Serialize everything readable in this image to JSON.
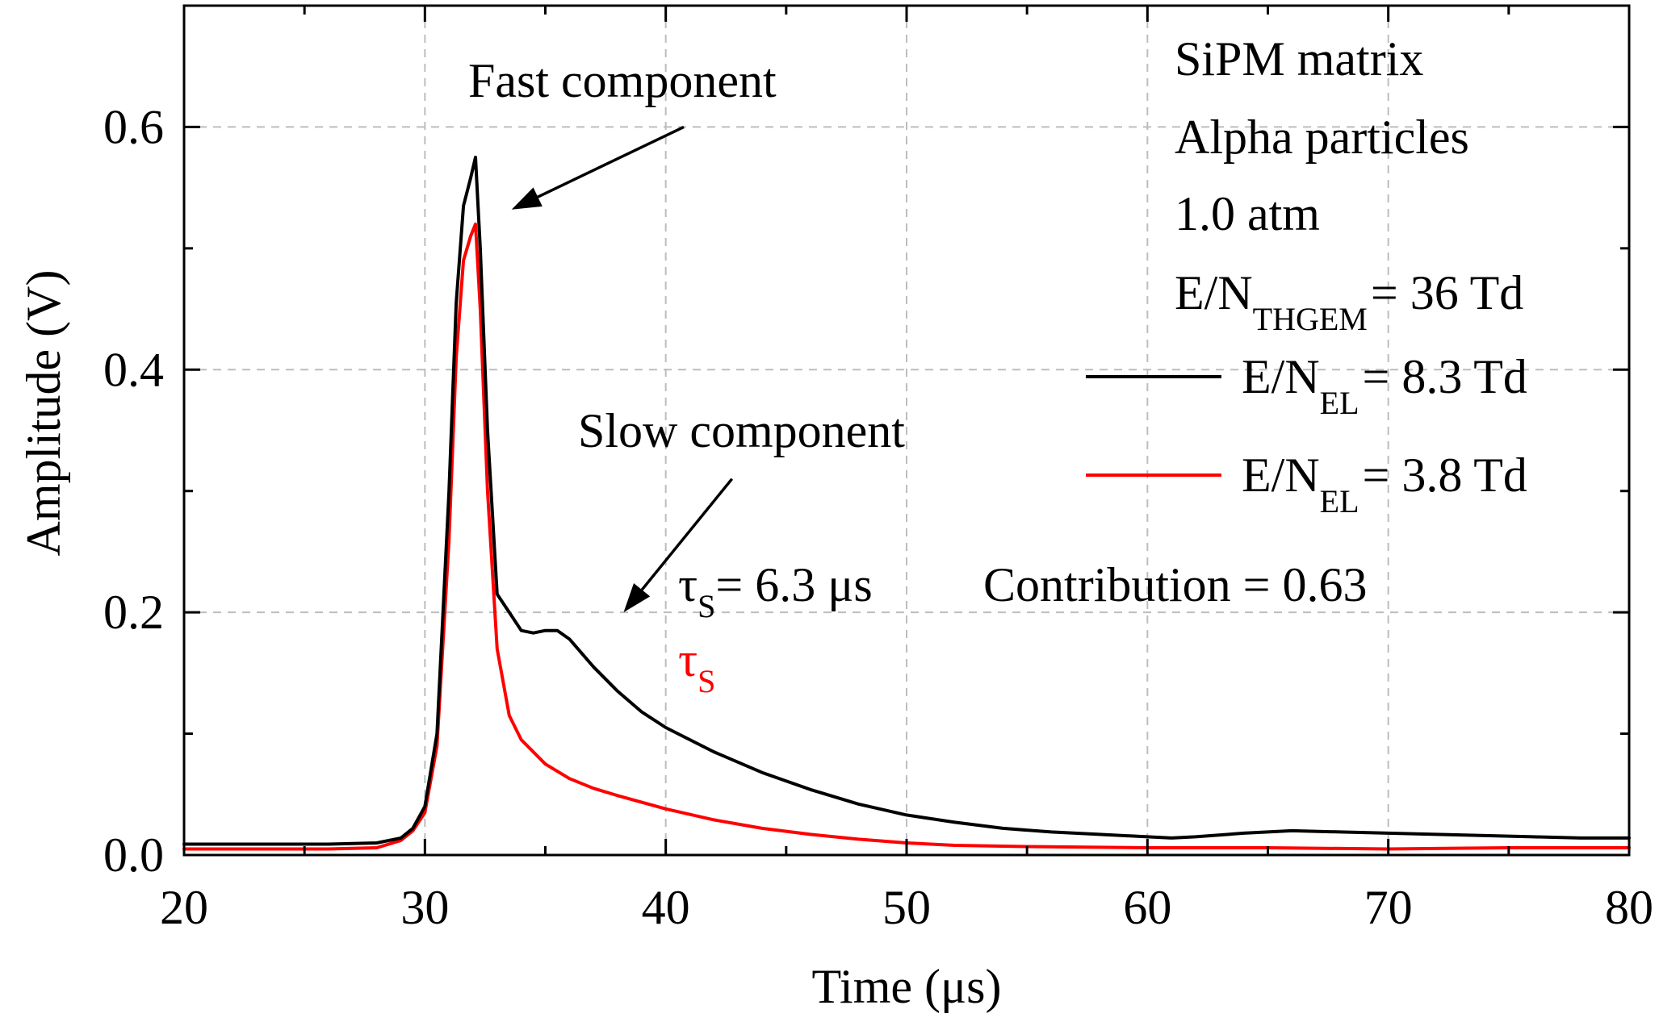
{
  "chart_data": {
    "type": "line",
    "title": "",
    "xlabel": "Time (μs)",
    "ylabel": "Amplitude (V)",
    "xlim": [
      20,
      80
    ],
    "ylim": [
      0,
      0.7
    ],
    "x_ticks": [
      20,
      30,
      40,
      50,
      60,
      70,
      80
    ],
    "x_tick_labels": [
      "20",
      "30",
      "40",
      "50",
      "60",
      "70",
      "80"
    ],
    "y_ticks": [
      0,
      0.2,
      0.4,
      0.6
    ],
    "y_tick_labels": [
      "0.0",
      "0.2",
      "0.4",
      "0.6"
    ],
    "y_minor_ticks": [
      0.1,
      0.3,
      0.5
    ],
    "x_minor_ticks": [
      25,
      35,
      45,
      55,
      65,
      75
    ],
    "grid": true,
    "legend_position": "right",
    "info_lines": [
      "SiPM matrix",
      "Alpha particles",
      "1.0 atm"
    ],
    "info_field": {
      "prefix": "E/N",
      "subscript": "THGEM",
      "suffix": "= 36 Td"
    },
    "series": [
      {
        "name": "E/N_EL = 8.3 Td",
        "legend_prefix": "E/N",
        "legend_subscript": "EL",
        "legend_suffix": "= 8.3 Td",
        "color": "#000000",
        "x": [
          20,
          22,
          24,
          26,
          28,
          29,
          29.5,
          30,
          30.5,
          31,
          31.3,
          31.6,
          31.9,
          32.1,
          32.3,
          32.6,
          33,
          33.5,
          34,
          34.5,
          35,
          35.5,
          36,
          37,
          38,
          39,
          40,
          42,
          44,
          46,
          48,
          50,
          52,
          54,
          56,
          58,
          60,
          61,
          62,
          64,
          66,
          68,
          70,
          72,
          74,
          76,
          78,
          80
        ],
        "y": [
          0.009,
          0.009,
          0.009,
          0.009,
          0.01,
          0.014,
          0.022,
          0.04,
          0.1,
          0.3,
          0.455,
          0.535,
          0.558,
          0.575,
          0.5,
          0.35,
          0.215,
          0.2,
          0.185,
          0.183,
          0.185,
          0.185,
          0.178,
          0.155,
          0.135,
          0.118,
          0.105,
          0.085,
          0.068,
          0.054,
          0.042,
          0.033,
          0.027,
          0.022,
          0.019,
          0.017,
          0.015,
          0.014,
          0.015,
          0.018,
          0.02,
          0.019,
          0.018,
          0.017,
          0.016,
          0.015,
          0.014,
          0.014
        ],
        "tau_label": "= 6.3 μs",
        "contribution_label": "Contribution = 0.63"
      },
      {
        "name": "E/N_EL = 3.8 Td",
        "legend_prefix": "E/N",
        "legend_subscript": "EL",
        "legend_suffix": "= 3.8 Td",
        "color": "#ff0000",
        "x": [
          20,
          22,
          24,
          26,
          28,
          29,
          29.5,
          30,
          30.5,
          31,
          31.3,
          31.6,
          31.9,
          32.1,
          32.3,
          32.6,
          33,
          33.5,
          34,
          35,
          36,
          37,
          38,
          40,
          42,
          44,
          46,
          48,
          50,
          52,
          55,
          60,
          65,
          70,
          75,
          80
        ],
        "y": [
          0.005,
          0.005,
          0.005,
          0.005,
          0.006,
          0.012,
          0.02,
          0.035,
          0.09,
          0.26,
          0.41,
          0.49,
          0.51,
          0.52,
          0.45,
          0.3,
          0.17,
          0.115,
          0.095,
          0.075,
          0.063,
          0.055,
          0.049,
          0.038,
          0.029,
          0.022,
          0.017,
          0.013,
          0.01,
          0.008,
          0.007,
          0.006,
          0.006,
          0.005,
          0.006,
          0.006
        ]
      }
    ],
    "annotations": {
      "fast": {
        "text": "Fast component",
        "arrow_tail": [
          40.75,
          0.6
        ],
        "arrow_head": [
          33.6,
          0.532
        ]
      },
      "slow": {
        "text": "Slow component",
        "arrow_tail": [
          42.75,
          0.31
        ],
        "arrow_head": [
          38.25,
          0.2
        ]
      },
      "tau_symbol": "τ",
      "tau_subscript": "S"
    }
  }
}
